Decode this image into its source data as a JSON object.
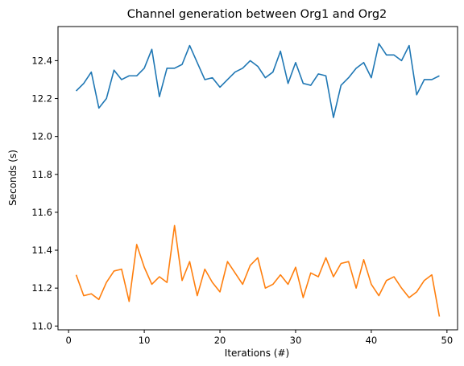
{
  "chart_data": {
    "type": "line",
    "title": "Channel generation between Org1 and Org2",
    "xlabel": "Iterations (#)",
    "ylabel": "Seconds (s)",
    "xlim": [
      -1.4,
      51.4
    ],
    "ylim": [
      10.98,
      12.58
    ],
    "xticks": [
      0,
      10,
      20,
      30,
      40,
      50
    ],
    "yticks": [
      11.0,
      11.2,
      11.4,
      11.6,
      11.8,
      12.0,
      12.2,
      12.4
    ],
    "grid": false,
    "x": [
      1,
      2,
      3,
      4,
      5,
      6,
      7,
      8,
      9,
      10,
      11,
      12,
      13,
      14,
      15,
      16,
      17,
      18,
      19,
      20,
      21,
      22,
      23,
      24,
      25,
      26,
      27,
      28,
      29,
      30,
      31,
      32,
      33,
      34,
      35,
      36,
      37,
      38,
      39,
      40,
      41,
      42,
      43,
      44,
      45,
      46,
      47,
      48,
      49
    ],
    "series": [
      {
        "color": "#1f77b4",
        "values": [
          12.24,
          12.28,
          12.34,
          12.15,
          12.2,
          12.35,
          12.3,
          12.32,
          12.32,
          12.36,
          12.46,
          12.21,
          12.36,
          12.36,
          12.38,
          12.48,
          12.39,
          12.3,
          12.31,
          12.26,
          12.3,
          12.34,
          12.36,
          12.4,
          12.37,
          12.31,
          12.34,
          12.45,
          12.28,
          12.39,
          12.28,
          12.27,
          12.33,
          12.32,
          12.1,
          12.27,
          12.31,
          12.36,
          12.39,
          12.31,
          12.49,
          12.43,
          12.43,
          12.4,
          12.48,
          12.22,
          12.3,
          12.3,
          12.32
        ]
      },
      {
        "color": "#ff7f0e",
        "values": [
          11.27,
          11.16,
          11.17,
          11.14,
          11.23,
          11.29,
          11.3,
          11.13,
          11.43,
          11.31,
          11.22,
          11.26,
          11.23,
          11.53,
          11.24,
          11.34,
          11.16,
          11.3,
          11.23,
          11.18,
          11.34,
          11.28,
          11.22,
          11.32,
          11.36,
          11.2,
          11.22,
          11.27,
          11.22,
          11.31,
          11.15,
          11.28,
          11.26,
          11.36,
          11.26,
          11.33,
          11.34,
          11.2,
          11.35,
          11.22,
          11.16,
          11.24,
          11.26,
          11.2,
          11.15,
          11.18,
          11.24,
          11.27,
          11.05
        ]
      }
    ]
  }
}
